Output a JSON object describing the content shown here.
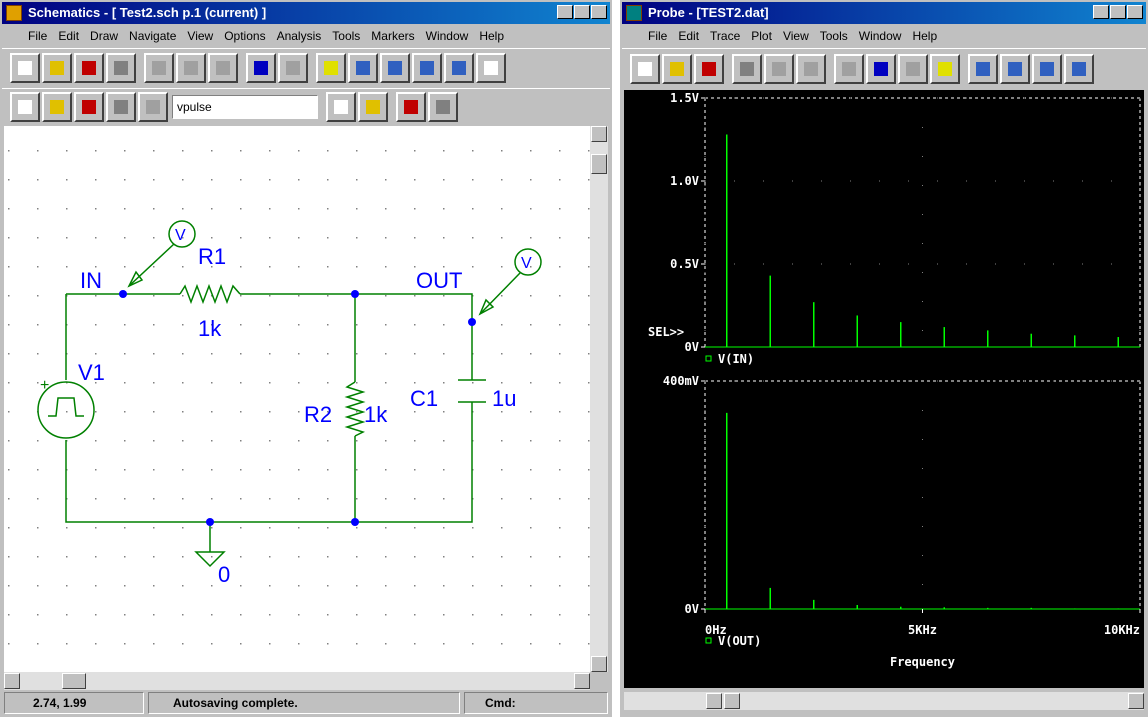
{
  "schematics": {
    "title": "Schematics - [ Test2.sch  p.1 (current) ]",
    "menu": [
      "File",
      "Edit",
      "Draw",
      "Navigate",
      "View",
      "Options",
      "Analysis",
      "Tools",
      "Markers",
      "Window",
      "Help"
    ],
    "part_box": "vpulse",
    "labels": {
      "in": "IN",
      "r1": "R1",
      "r1_value": "1k",
      "out": "OUT",
      "v1": "V1",
      "r2": "R2",
      "r2_value": "1k",
      "c1": "C1",
      "c1_value": "1u",
      "ground": "0",
      "probe_in": "V",
      "probe_out": "V"
    },
    "status": {
      "coords": "2.74, 1.99",
      "message": "Autosaving complete.",
      "cmd": "Cmd:"
    }
  },
  "probe": {
    "title": "Probe - [TEST2.dat]",
    "menu": [
      "File",
      "Edit",
      "Trace",
      "Plot",
      "View",
      "Tools",
      "Window",
      "Help"
    ],
    "selector": "SEL>>",
    "x_label": "Frequency",
    "xlim": [
      0,
      10000
    ],
    "xticks": [
      {
        "value": 0,
        "label": "0Hz"
      },
      {
        "value": 5000,
        "label": "5KHz"
      },
      {
        "value": 10000,
        "label": "10KHz"
      }
    ],
    "plots": [
      {
        "legend": "V(IN)",
        "color": "#00ff00",
        "ylim": [
          0,
          1.5
        ],
        "yticks": [
          {
            "value": 0,
            "label": "0V"
          },
          {
            "value": 0.5,
            "label": "0.5V"
          },
          {
            "value": 1.0,
            "label": "1.0V"
          },
          {
            "value": 1.5,
            "label": "1.5V"
          }
        ],
        "x": [
          500,
          1500,
          2500,
          3500,
          4500,
          5500,
          6500,
          7500,
          8500,
          9500
        ],
        "values": [
          1.28,
          0.43,
          0.27,
          0.19,
          0.15,
          0.12,
          0.1,
          0.08,
          0.07,
          0.06
        ]
      },
      {
        "legend": "V(OUT)",
        "color": "#00ff00",
        "ylim": [
          0,
          400
        ],
        "yticks": [
          {
            "value": 0,
            "label": "0V"
          },
          {
            "value": 400,
            "label": "400mV"
          }
        ],
        "x": [
          500,
          1500,
          2500,
          3500,
          4500,
          5500,
          6500,
          7500,
          8500,
          9500
        ],
        "values": [
          344,
          37,
          16,
          7,
          4,
          3,
          2,
          2,
          1,
          1
        ]
      }
    ]
  }
}
